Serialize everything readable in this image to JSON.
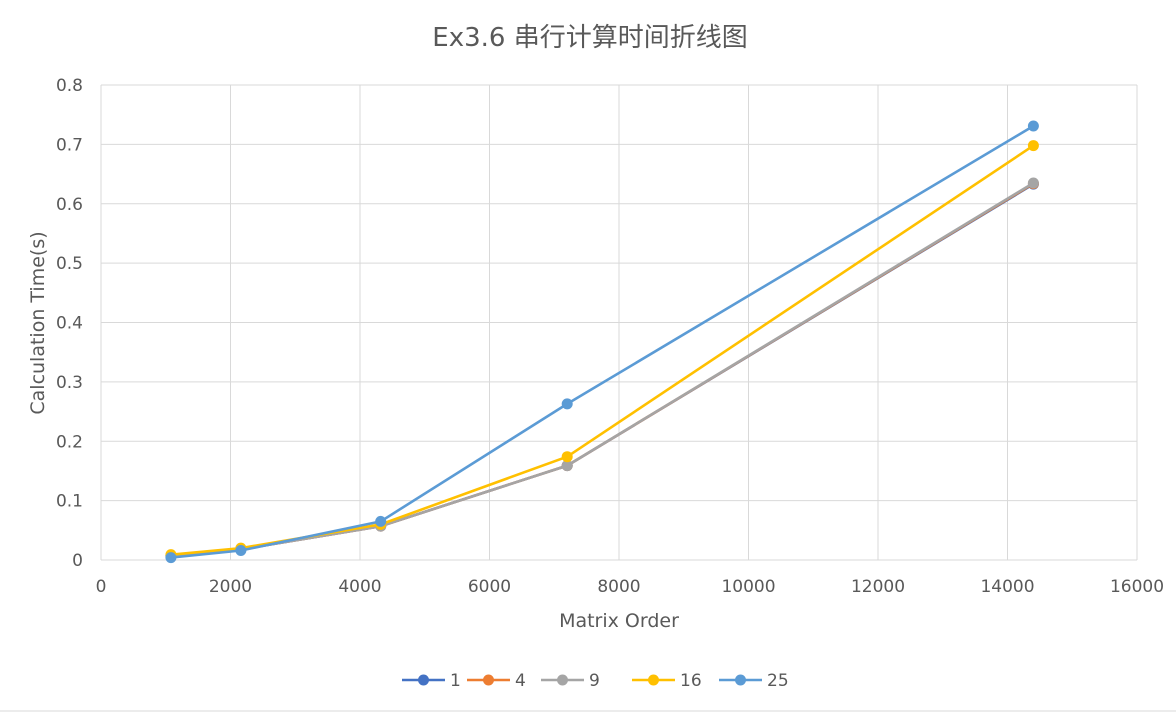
{
  "chart_data": {
    "type": "line",
    "title": "Ex3.6 串行计算时间折线图",
    "xlabel": "Matrix Order",
    "ylabel": "Calculation Time(s)",
    "xlim": [
      0,
      16000
    ],
    "ylim": [
      0,
      0.8
    ],
    "x_ticks": [
      "0",
      "2000",
      "4000",
      "6000",
      "8000",
      "10000",
      "12000",
      "14000",
      "16000"
    ],
    "y_ticks": [
      "0",
      "0.1",
      "0.2",
      "0.3",
      "0.4",
      "0.5",
      "0.6",
      "0.7",
      "0.8"
    ],
    "grid": true,
    "legend_position": "bottom",
    "x": [
      1080,
      2160,
      4320,
      7200,
      14400
    ],
    "series": [
      {
        "name": "1",
        "color": "#4472C4",
        "values": [
          0.007,
          0.018,
          0.057,
          0.159,
          0.633
        ]
      },
      {
        "name": "4",
        "color": "#ED7D31",
        "values": [
          0.007,
          0.018,
          0.057,
          0.159,
          0.634
        ]
      },
      {
        "name": "9",
        "color": "#A5A5A5",
        "values": [
          0.007,
          0.018,
          0.057,
          0.159,
          0.635
        ]
      },
      {
        "name": "16",
        "color": "#FFC000",
        "values": [
          0.009,
          0.02,
          0.06,
          0.174,
          0.698
        ]
      },
      {
        "name": "25",
        "color": "#5B9BD5",
        "values": [
          0.004,
          0.016,
          0.065,
          0.263,
          0.731
        ]
      }
    ]
  }
}
